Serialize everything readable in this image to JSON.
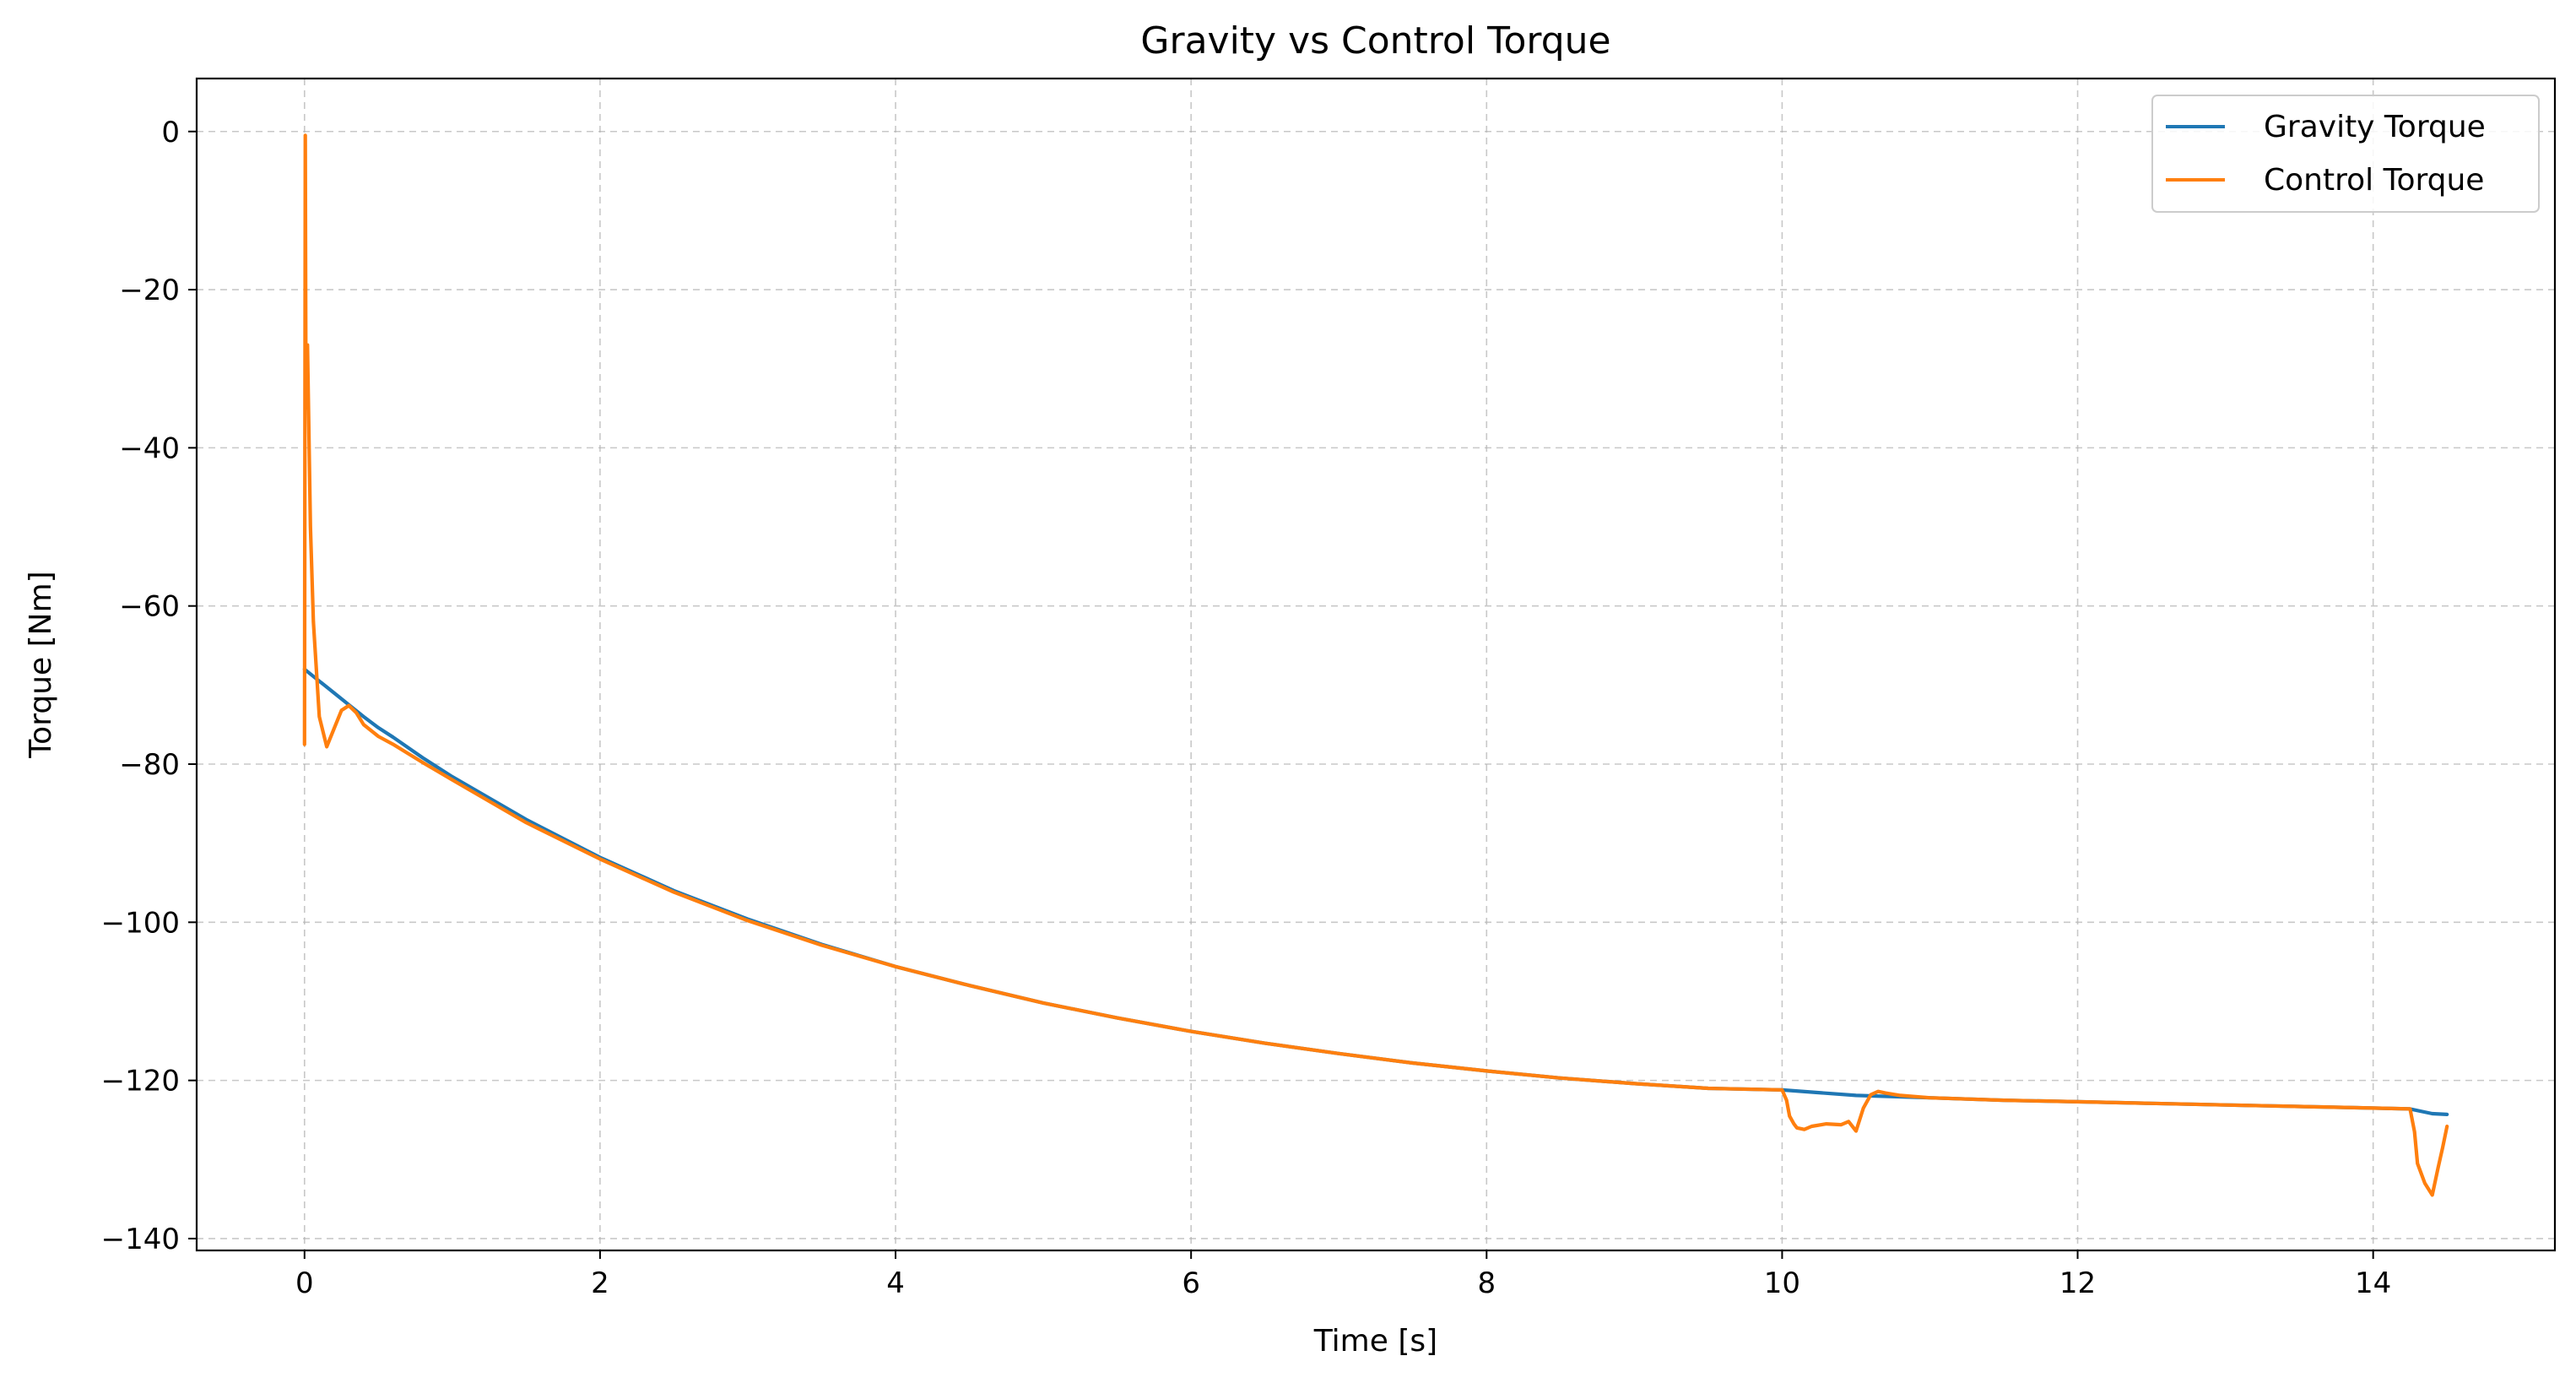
{
  "chart_data": {
    "type": "line",
    "title": "Gravity vs Control Torque",
    "xlabel": "Time [s]",
    "ylabel": "Torque [Nm]",
    "xlim": [
      -0.73,
      15.23
    ],
    "ylim": [
      -141.5,
      6.7
    ],
    "xticks": [
      0,
      2,
      4,
      6,
      8,
      10,
      12,
      14
    ],
    "xtick_labels": [
      "0",
      "2",
      "4",
      "6",
      "8",
      "10",
      "12",
      "14"
    ],
    "yticks": [
      0,
      -20,
      -40,
      -60,
      -80,
      -100,
      -120,
      -140
    ],
    "ytick_labels": [
      "0",
      "−20",
      "−40",
      "−60",
      "−80",
      "−100",
      "−120",
      "−140"
    ],
    "grid": true,
    "legend_position": "top-right",
    "series": [
      {
        "name": "Gravity Torque",
        "color": "#1f77b4",
        "x": [
          0,
          0.1,
          0.2,
          0.3,
          0.4,
          0.5,
          0.6,
          0.8,
          1,
          1.5,
          2,
          2.5,
          3,
          3.5,
          4,
          4.5,
          5,
          5.5,
          6,
          6.5,
          7,
          7.5,
          8,
          8.5,
          9,
          9.5,
          10,
          10.5,
          11,
          11.5,
          12,
          12.5,
          13,
          13.5,
          14,
          14.25,
          14.4,
          14.5
        ],
        "y": [
          -68,
          -69.5,
          -71,
          -72.5,
          -74,
          -75.4,
          -76.6,
          -79.2,
          -81.6,
          -87,
          -91.8,
          -96,
          -99.6,
          -102.8,
          -105.6,
          -108,
          -110.2,
          -112.1,
          -113.8,
          -115.3,
          -116.6,
          -117.8,
          -118.8,
          -119.7,
          -120.4,
          -121,
          -121.2,
          -121.9,
          -122.2,
          -122.5,
          -122.7,
          -122.9,
          -123.1,
          -123.3,
          -123.5,
          -123.6,
          -124.2,
          -124.3
        ]
      },
      {
        "name": "Control Torque",
        "color": "#ff7f0e",
        "x": [
          0,
          0.005,
          0.01,
          0.02,
          0.04,
          0.06,
          0.1,
          0.15,
          0.2,
          0.25,
          0.3,
          0.35,
          0.4,
          0.5,
          0.6,
          0.8,
          1,
          1.5,
          2,
          2.5,
          3,
          3.5,
          4,
          4.5,
          5,
          5.5,
          6,
          6.5,
          7,
          7.5,
          8,
          8.5,
          9,
          9.5,
          10,
          10.03,
          10.05,
          10.08,
          10.1,
          10.15,
          10.2,
          10.3,
          10.4,
          10.45,
          10.5,
          10.55,
          10.6,
          10.65,
          10.7,
          10.8,
          11,
          11.5,
          12,
          12.5,
          13,
          13.5,
          14,
          14.25,
          14.28,
          14.3,
          14.35,
          14.4,
          14.44,
          14.47,
          14.5
        ],
        "y": [
          -77.5,
          -0.5,
          -35,
          -27,
          -50,
          -62,
          -74,
          -77.8,
          -75.5,
          -73.2,
          -72.6,
          -73.5,
          -75,
          -76.5,
          -77.5,
          -79.8,
          -82,
          -87.4,
          -92,
          -96.2,
          -99.8,
          -102.9,
          -105.6,
          -108,
          -110.2,
          -112.1,
          -113.8,
          -115.3,
          -116.6,
          -117.8,
          -118.8,
          -119.7,
          -120.4,
          -121,
          -121.2,
          -122.5,
          -124.5,
          -125.5,
          -126,
          -126.2,
          -125.8,
          -125.5,
          -125.6,
          -125.2,
          -126.4,
          -123.5,
          -121.8,
          -121.4,
          -121.6,
          -121.9,
          -122.2,
          -122.5,
          -122.7,
          -122.9,
          -123.1,
          -123.3,
          -123.5,
          -123.6,
          -126.5,
          -130.5,
          -133,
          -134.5,
          -131,
          -128.5,
          -125.8
        ]
      }
    ]
  }
}
